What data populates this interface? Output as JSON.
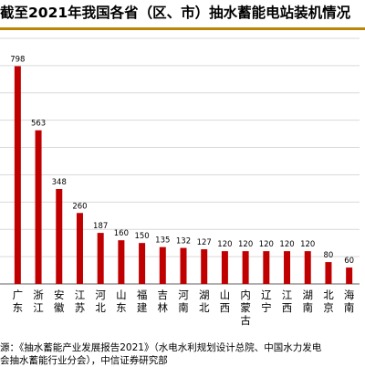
{
  "title": "截至2021年我国各省（区、市）抽水蓄能电站装机情况",
  "source_lines": [
    "源：《抽水蓄能产业发展报告2021》（水电水利规划设计总院、中国水力发电",
    "会抽水蓄能行业分会），中信证券研究部"
  ],
  "colors": {
    "bar": "#c00000",
    "rule": "#b8860b",
    "grid": "#d9d9d9",
    "axis": "#7f7f7f"
  },
  "chart_data": {
    "type": "bar",
    "title": "截至2021年我国各省（区、市）抽水蓄能电站装机情况",
    "categories": [
      "广东",
      "浙江",
      "安徽",
      "江苏",
      "河北",
      "山东",
      "福建",
      "吉林",
      "河南",
      "湖北",
      "山西",
      "内蒙古",
      "辽宁",
      "江西",
      "湖南",
      "北京",
      "海南"
    ],
    "values": [
      798,
      563,
      348,
      260,
      187,
      160,
      150,
      135,
      132,
      127,
      120,
      120,
      120,
      120,
      120,
      80,
      60
    ],
    "ylim": [
      0,
      900
    ],
    "yticks": [
      0,
      100,
      200,
      300,
      400,
      500,
      600,
      700,
      800,
      900
    ],
    "grid": true,
    "xlabel": "",
    "ylabel": ""
  }
}
